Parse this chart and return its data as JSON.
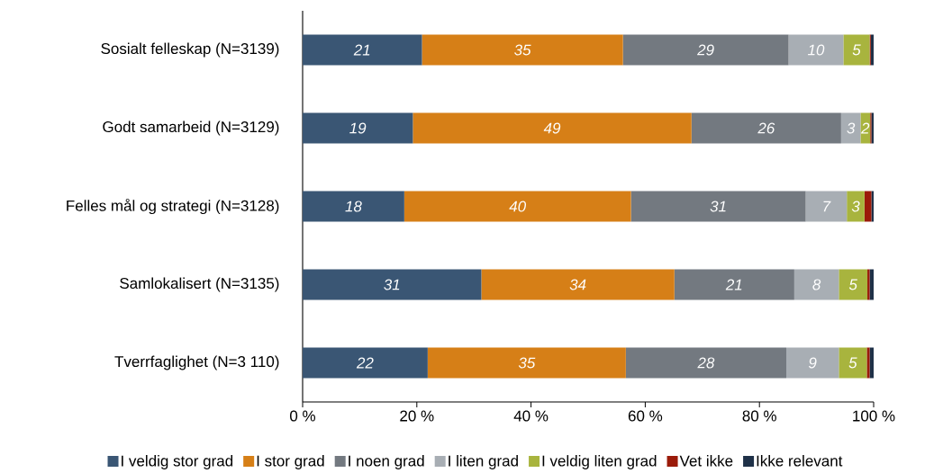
{
  "chart_data": {
    "type": "bar",
    "orientation": "horizontal",
    "stacked": true,
    "categories": [
      "Sosialt felleskap (N=3139)",
      "Godt samarbeid (N=3129)",
      "Felles mål og strategi (N=3128)",
      "Samlokalisert (N=3135)",
      "Tverrfaglighet (N=3 110)"
    ],
    "series": [
      {
        "name": "I veldig stor grad",
        "color": "#3a5674",
        "values": [
          20.9,
          19.3,
          17.8,
          31.3,
          21.9
        ],
        "value_labels": [
          "21",
          "19",
          "18",
          "31",
          "22"
        ]
      },
      {
        "name": "I stor grad",
        "color": "#d67f17",
        "values": [
          35.2,
          48.8,
          39.7,
          33.8,
          34.7
        ],
        "value_labels": [
          "35",
          "49",
          "40",
          "34",
          "35"
        ]
      },
      {
        "name": "I noen grad",
        "color": "#737980",
        "values": [
          29.0,
          26.2,
          30.6,
          21.0,
          28.1
        ],
        "value_labels": [
          "29",
          "26",
          "31",
          "21",
          "28"
        ]
      },
      {
        "name": "I liten grad",
        "color": "#a8aeb4",
        "values": [
          9.6,
          3.4,
          7.2,
          7.8,
          9.2
        ],
        "value_labels": [
          "10",
          "3",
          "7",
          "8",
          "9"
        ]
      },
      {
        "name": "I veldig liten grad",
        "color": "#a8b43e",
        "values": [
          4.6,
          1.7,
          3.1,
          5.0,
          4.9
        ],
        "value_labels": [
          "5",
          "2",
          "3",
          "5",
          "5"
        ]
      },
      {
        "name": "Vet ikke",
        "color": "#9b1b0a",
        "values": [
          0.2,
          0.2,
          1.2,
          0.4,
          0.5
        ]
      },
      {
        "name": "Ikke relevant",
        "color": "#1f3148",
        "values": [
          0.5,
          0.4,
          0.4,
          0.7,
          0.7
        ]
      }
    ],
    "xlim": [
      0,
      100
    ],
    "xticks": [
      {
        "value": 0,
        "label": "0 %"
      },
      {
        "value": 20,
        "label": "20 %"
      },
      {
        "value": 40,
        "label": "40 %"
      },
      {
        "value": 60,
        "label": "60 %"
      },
      {
        "value": 80,
        "label": "80 %"
      },
      {
        "value": 100,
        "label": "100 %"
      }
    ],
    "legend": "bottom"
  }
}
